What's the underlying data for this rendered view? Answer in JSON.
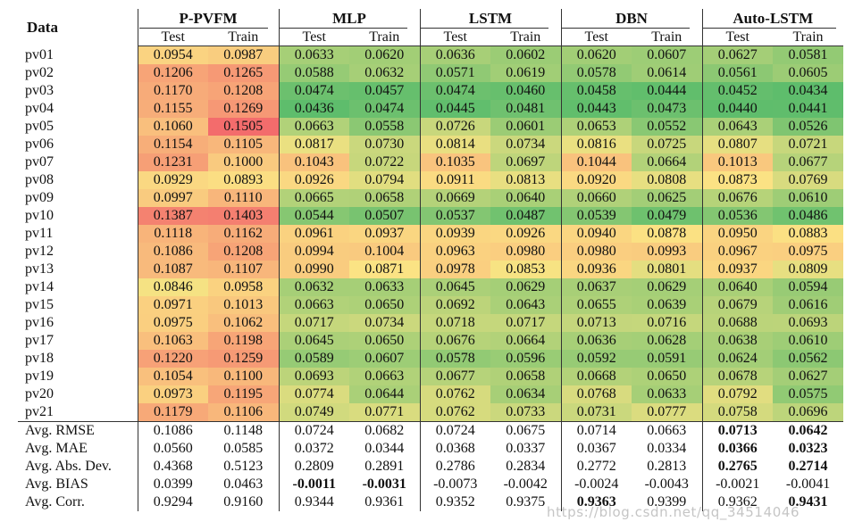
{
  "table": {
    "label_header": "Data",
    "groups": [
      {
        "name": "P-PVFM",
        "sub": [
          "Test",
          "Train"
        ]
      },
      {
        "name": "MLP",
        "sub": [
          "Test",
          "Train"
        ]
      },
      {
        "name": "LSTM",
        "sub": [
          "Test",
          "Train"
        ]
      },
      {
        "name": "DBN",
        "sub": [
          "Test",
          "Train"
        ]
      },
      {
        "name": "Auto-LSTM",
        "sub": [
          "Test",
          "Train"
        ]
      }
    ],
    "rows": [
      {
        "label": "pv01",
        "values": [
          "0.0954",
          "0.0987",
          "0.0633",
          "0.0620",
          "0.0636",
          "0.0602",
          "0.0620",
          "0.0607",
          "0.0627",
          "0.0581"
        ]
      },
      {
        "label": "pv02",
        "values": [
          "0.1206",
          "0.1265",
          "0.0588",
          "0.0632",
          "0.0571",
          "0.0619",
          "0.0578",
          "0.0614",
          "0.0561",
          "0.0605"
        ]
      },
      {
        "label": "pv03",
        "values": [
          "0.1170",
          "0.1208",
          "0.0474",
          "0.0457",
          "0.0474",
          "0.0460",
          "0.0458",
          "0.0444",
          "0.0452",
          "0.0434"
        ]
      },
      {
        "label": "pv04",
        "values": [
          "0.1155",
          "0.1269",
          "0.0436",
          "0.0474",
          "0.0445",
          "0.0481",
          "0.0443",
          "0.0473",
          "0.0440",
          "0.0441"
        ]
      },
      {
        "label": "pv05",
        "values": [
          "0.1060",
          "0.1505",
          "0.0663",
          "0.0558",
          "0.0726",
          "0.0601",
          "0.0653",
          "0.0552",
          "0.0643",
          "0.0526"
        ]
      },
      {
        "label": "pv06",
        "values": [
          "0.1154",
          "0.1105",
          "0.0817",
          "0.0730",
          "0.0814",
          "0.0734",
          "0.0816",
          "0.0725",
          "0.0807",
          "0.0721"
        ]
      },
      {
        "label": "pv07",
        "values": [
          "0.1231",
          "0.1000",
          "0.1043",
          "0.0722",
          "0.1035",
          "0.0697",
          "0.1044",
          "0.0664",
          "0.1013",
          "0.0677"
        ]
      },
      {
        "label": "pv08",
        "values": [
          "0.0929",
          "0.0893",
          "0.0926",
          "0.0794",
          "0.0911",
          "0.0813",
          "0.0920",
          "0.0808",
          "0.0873",
          "0.0769"
        ]
      },
      {
        "label": "pv09",
        "values": [
          "0.0997",
          "0.1110",
          "0.0665",
          "0.0658",
          "0.0669",
          "0.0640",
          "0.0660",
          "0.0625",
          "0.0676",
          "0.0610"
        ]
      },
      {
        "label": "pv10",
        "values": [
          "0.1387",
          "0.1403",
          "0.0544",
          "0.0507",
          "0.0537",
          "0.0487",
          "0.0539",
          "0.0479",
          "0.0536",
          "0.0486"
        ]
      },
      {
        "label": "pv11",
        "values": [
          "0.1118",
          "0.1162",
          "0.0961",
          "0.0937",
          "0.0939",
          "0.0926",
          "0.0940",
          "0.0878",
          "0.0950",
          "0.0883"
        ]
      },
      {
        "label": "pv12",
        "values": [
          "0.1086",
          "0.1208",
          "0.0994",
          "0.1004",
          "0.0963",
          "0.0980",
          "0.0980",
          "0.0993",
          "0.0967",
          "0.0975"
        ]
      },
      {
        "label": "pv13",
        "values": [
          "0.1087",
          "0.1107",
          "0.0990",
          "0.0871",
          "0.0978",
          "0.0853",
          "0.0936",
          "0.0801",
          "0.0937",
          "0.0809"
        ]
      },
      {
        "label": "pv14",
        "values": [
          "0.0846",
          "0.0958",
          "0.0632",
          "0.0633",
          "0.0645",
          "0.0629",
          "0.0637",
          "0.0629",
          "0.0640",
          "0.0594"
        ]
      },
      {
        "label": "pv15",
        "values": [
          "0.0971",
          "0.1013",
          "0.0663",
          "0.0650",
          "0.0692",
          "0.0643",
          "0.0655",
          "0.0639",
          "0.0679",
          "0.0616"
        ]
      },
      {
        "label": "pv16",
        "values": [
          "0.0975",
          "0.1062",
          "0.0717",
          "0.0734",
          "0.0718",
          "0.0717",
          "0.0713",
          "0.0716",
          "0.0688",
          "0.0693"
        ]
      },
      {
        "label": "pv17",
        "values": [
          "0.1063",
          "0.1198",
          "0.0645",
          "0.0650",
          "0.0676",
          "0.0664",
          "0.0636",
          "0.0628",
          "0.0638",
          "0.0610"
        ]
      },
      {
        "label": "pv18",
        "values": [
          "0.1220",
          "0.1259",
          "0.0589",
          "0.0607",
          "0.0578",
          "0.0596",
          "0.0592",
          "0.0591",
          "0.0624",
          "0.0562"
        ]
      },
      {
        "label": "pv19",
        "values": [
          "0.1054",
          "0.1100",
          "0.0693",
          "0.0663",
          "0.0677",
          "0.0658",
          "0.0668",
          "0.0650",
          "0.0678",
          "0.0627"
        ]
      },
      {
        "label": "pv20",
        "values": [
          "0.0973",
          "0.1195",
          "0.0774",
          "0.0644",
          "0.0762",
          "0.0634",
          "0.0768",
          "0.0633",
          "0.0792",
          "0.0575"
        ]
      },
      {
        "label": "pv21",
        "values": [
          "0.1179",
          "0.1106",
          "0.0749",
          "0.0771",
          "0.0762",
          "0.0733",
          "0.0731",
          "0.0777",
          "0.0758",
          "0.0696"
        ]
      }
    ],
    "summary": [
      {
        "label": "Avg. RMSE",
        "values": [
          "0.1086",
          "0.1148",
          "0.0724",
          "0.0682",
          "0.0724",
          "0.0675",
          "0.0714",
          "0.0663",
          "0.0713",
          "0.0642"
        ],
        "bold": [
          8,
          9
        ]
      },
      {
        "label": "Avg. MAE",
        "values": [
          "0.0560",
          "0.0585",
          "0.0372",
          "0.0344",
          "0.0368",
          "0.0337",
          "0.0367",
          "0.0334",
          "0.0366",
          "0.0323"
        ],
        "bold": [
          8,
          9
        ]
      },
      {
        "label": "Avg. Abs. Dev.",
        "values": [
          "0.4368",
          "0.5123",
          "0.2809",
          "0.2891",
          "0.2786",
          "0.2834",
          "0.2772",
          "0.2813",
          "0.2765",
          "0.2714"
        ],
        "bold": [
          8,
          9
        ]
      },
      {
        "label": "Avg. BIAS",
        "values": [
          "0.0399",
          "0.0463",
          "-0.0011",
          "-0.0031",
          "-0.0073",
          "-0.0042",
          "-0.0024",
          "-0.0043",
          "-0.0021",
          "-0.0041"
        ],
        "bold": [
          2,
          3
        ]
      },
      {
        "label": "Avg. Corr.",
        "values": [
          "0.9294",
          "0.9160",
          "0.9344",
          "0.9361",
          "0.9352",
          "0.9375",
          "0.9363",
          "0.9399",
          "0.9362",
          "0.9431"
        ],
        "bold": [
          6,
          9
        ]
      }
    ],
    "heatmap_colors": {
      "low": "#5ebd6c",
      "mid": "#fbe484",
      "high": "#f36c6c"
    },
    "heatmap_range": [
      0.0436,
      0.1505
    ]
  },
  "watermark": "https://blog.csdn.net/qq_34514046"
}
